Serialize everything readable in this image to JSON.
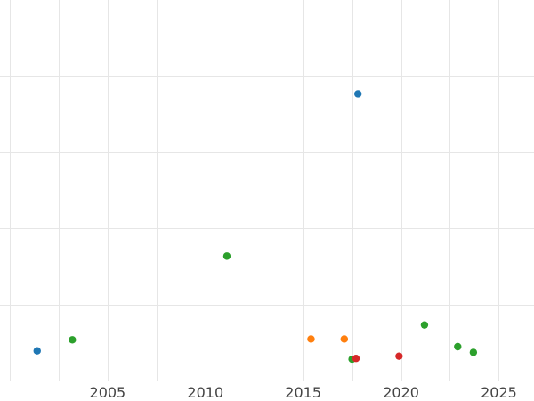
{
  "chart_data": {
    "type": "scatter",
    "title": "",
    "xlabel": "",
    "ylabel": "",
    "xlim": [
      1999.5,
      2026.8
    ],
    "ylim": [
      0,
      100
    ],
    "x_ticks": [
      2005,
      2010,
      2015,
      2020,
      2025
    ],
    "y_gridlines": [
      20,
      40,
      60,
      80
    ],
    "grid": true,
    "legend": "none",
    "series": [
      {
        "color": "#1f77b4",
        "points": [
          {
            "x": 2001.4,
            "y": 7.8
          },
          {
            "x": 2017.8,
            "y": 75.3
          }
        ]
      },
      {
        "color": "#ff7f0e",
        "points": [
          {
            "x": 2015.4,
            "y": 10.9
          },
          {
            "x": 2017.1,
            "y": 10.9
          }
        ]
      },
      {
        "color": "#2ca02c",
        "points": [
          {
            "x": 2003.2,
            "y": 10.7
          },
          {
            "x": 2011.1,
            "y": 32.7
          },
          {
            "x": 2017.5,
            "y": 5.6
          },
          {
            "x": 2021.2,
            "y": 14.6
          },
          {
            "x": 2022.9,
            "y": 8.9
          },
          {
            "x": 2023.7,
            "y": 7.4
          }
        ]
      },
      {
        "color": "#d62728",
        "points": [
          {
            "x": 2017.7,
            "y": 5.8
          },
          {
            "x": 2019.9,
            "y": 6.4
          }
        ]
      }
    ]
  }
}
